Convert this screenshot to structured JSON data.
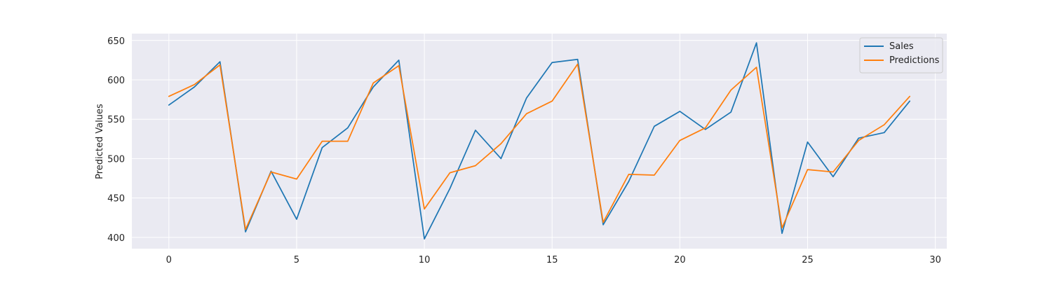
{
  "chart_data": {
    "type": "line",
    "title": "",
    "xlabel": "",
    "ylabel": "Predicted Values",
    "xlim": [
      -1.45,
      30.45
    ],
    "ylim": [
      385.6,
      658.7
    ],
    "xticks": [
      0,
      5,
      10,
      15,
      20,
      25,
      30
    ],
    "yticks": [
      400,
      450,
      500,
      550,
      600,
      650
    ],
    "grid": true,
    "legend_position": "top-right",
    "x": [
      0,
      1,
      2,
      3,
      4,
      5,
      6,
      7,
      8,
      9,
      10,
      11,
      12,
      13,
      14,
      15,
      16,
      17,
      18,
      19,
      20,
      21,
      22,
      23,
      24,
      25,
      26,
      27,
      28,
      29
    ],
    "series": [
      {
        "name": "Sales",
        "color": "#1f77b4",
        "values": [
          568,
          591,
          623,
          407,
          484,
          423,
          514,
          539,
          591,
          625,
          398,
          462,
          536,
          500,
          577,
          622,
          626,
          416,
          471,
          541,
          560,
          537,
          559,
          647,
          405,
          521,
          477,
          526,
          533,
          573
        ]
      },
      {
        "name": "Predictions",
        "color": "#ff7f0e",
        "values": [
          579,
          594,
          619,
          410,
          483,
          474,
          522,
          522,
          596,
          618,
          436,
          482,
          491,
          519,
          557,
          573,
          620,
          419,
          480,
          479,
          523,
          539,
          587,
          616,
          412,
          486,
          483,
          523,
          543,
          579
        ]
      }
    ]
  }
}
